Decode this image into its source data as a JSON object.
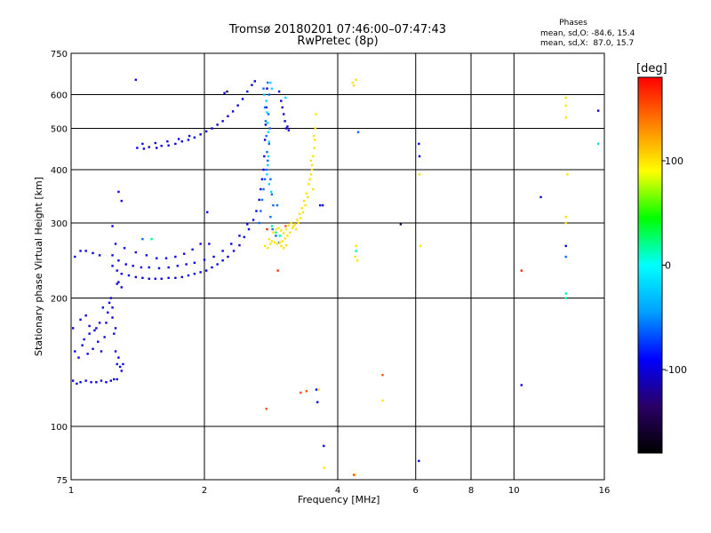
{
  "chart_data": {
    "type": "scatter",
    "title": "Tromsø 20180201 07:46:00–07:47:43",
    "subtitle": "RwPretec (8p)",
    "xlabel": "Frequency [MHz]",
    "ylabel": "Stationary phase Virtual Height [km]",
    "x_scale": "log",
    "y_scale": "log",
    "xlim": [
      1,
      16
    ],
    "ylim": [
      75,
      750
    ],
    "x_ticks": [
      "1",
      "2",
      "4",
      "6",
      "8",
      "10",
      "16"
    ],
    "y_ticks": [
      "75",
      "100",
      "200",
      "300",
      "400",
      "500",
      "600",
      "750"
    ],
    "grid": true,
    "phase_stats": {
      "heading": "Phases",
      "o_mode": "mean, sd,O: -84.6, 15.4",
      "x_mode": "mean, sd,X:  87.0, 15.7"
    },
    "colorbar": {
      "unit": "[deg]",
      "range": [
        -180,
        180
      ],
      "ticks": [
        "100",
        "0",
        "-100"
      ],
      "colormap": [
        "#000000",
        "#2a0066",
        "#0000ff",
        "#00a0ff",
        "#00ffff",
        "#00ff00",
        "#ffff00",
        "#ff8000",
        "#ff0000"
      ]
    },
    "series": [
      {
        "phase_deg": -100,
        "points": [
          [
            1.01,
            128
          ],
          [
            1.03,
            126
          ],
          [
            1.05,
            127
          ],
          [
            1.08,
            128
          ],
          [
            1.11,
            127
          ],
          [
            1.14,
            127
          ],
          [
            1.17,
            128
          ],
          [
            1.2,
            127
          ],
          [
            1.23,
            128
          ],
          [
            1.25,
            129
          ],
          [
            1.27,
            129
          ],
          [
            1.02,
            150
          ],
          [
            1.04,
            145
          ],
          [
            1.06,
            155
          ],
          [
            1.07,
            160
          ],
          [
            1.09,
            148
          ],
          [
            1.1,
            165
          ],
          [
            1.12,
            152
          ],
          [
            1.14,
            170
          ],
          [
            1.15,
            158
          ],
          [
            1.17,
            150
          ],
          [
            1.19,
            162
          ],
          [
            1.2,
            175
          ],
          [
            1.21,
            185
          ],
          [
            1.22,
            195
          ],
          [
            1.23,
            200
          ],
          [
            1.24,
            190
          ],
          [
            1.25,
            165
          ],
          [
            1.26,
            150
          ],
          [
            1.27,
            140
          ],
          [
            1.28,
            145
          ],
          [
            1.29,
            138
          ],
          [
            1.3,
            135
          ],
          [
            1.31,
            140
          ],
          [
            1.01,
            170
          ],
          [
            1.05,
            178
          ],
          [
            1.08,
            182
          ],
          [
            1.1,
            172
          ],
          [
            1.13,
            168
          ],
          [
            1.16,
            175
          ],
          [
            1.18,
            190
          ],
          [
            1.24,
            180
          ],
          [
            1.26,
            170
          ],
          [
            1.28,
            218
          ],
          [
            1.27,
            216
          ],
          [
            1.3,
            212
          ],
          [
            1.02,
            250
          ],
          [
            1.05,
            258
          ],
          [
            1.08,
            258
          ],
          [
            1.12,
            255
          ],
          [
            1.16,
            252
          ],
          [
            1.24,
            238
          ],
          [
            1.27,
            232
          ],
          [
            1.3,
            228
          ],
          [
            1.35,
            226
          ],
          [
            1.4,
            224
          ],
          [
            1.45,
            223
          ],
          [
            1.5,
            222
          ],
          [
            1.55,
            222
          ],
          [
            1.6,
            222
          ],
          [
            1.66,
            223
          ],
          [
            1.72,
            223
          ],
          [
            1.78,
            224
          ],
          [
            1.84,
            226
          ],
          [
            1.9,
            228
          ],
          [
            1.96,
            230
          ],
          [
            2.02,
            232
          ],
          [
            2.08,
            236
          ],
          [
            2.14,
            240
          ],
          [
            2.2,
            245
          ],
          [
            2.26,
            250
          ],
          [
            2.33,
            258
          ],
          [
            2.4,
            266
          ],
          [
            2.46,
            278
          ],
          [
            2.52,
            290
          ],
          [
            2.58,
            305
          ],
          [
            2.62,
            320
          ],
          [
            2.66,
            340
          ],
          [
            2.68,
            360
          ],
          [
            2.7,
            380
          ],
          [
            2.72,
            400
          ],
          [
            2.73,
            430
          ],
          [
            2.74,
            470
          ],
          [
            2.75,
            510
          ],
          [
            2.76,
            560
          ],
          [
            2.77,
            620
          ],
          [
            1.24,
            252
          ],
          [
            1.28,
            245
          ],
          [
            1.33,
            240
          ],
          [
            1.38,
            238
          ],
          [
            1.44,
            236
          ],
          [
            1.5,
            236
          ],
          [
            1.58,
            235
          ],
          [
            1.66,
            236
          ],
          [
            1.74,
            238
          ],
          [
            1.82,
            240
          ],
          [
            1.9,
            242
          ],
          [
            2.0,
            246
          ],
          [
            2.1,
            250
          ],
          [
            2.2,
            258
          ],
          [
            2.3,
            268
          ],
          [
            2.4,
            280
          ],
          [
            2.5,
            298
          ],
          [
            1.26,
            268
          ],
          [
            1.32,
            262
          ],
          [
            1.4,
            256
          ],
          [
            1.48,
            252
          ],
          [
            1.56,
            248
          ],
          [
            1.64,
            248
          ],
          [
            1.72,
            250
          ],
          [
            1.8,
            254
          ],
          [
            1.88,
            260
          ],
          [
            1.96,
            268
          ],
          [
            2.05,
            268
          ],
          [
            1.41,
            450
          ],
          [
            1.46,
            448
          ],
          [
            1.5,
            452
          ],
          [
            1.56,
            450
          ],
          [
            1.6,
            455
          ],
          [
            1.66,
            456
          ],
          [
            1.72,
            460
          ],
          [
            1.78,
            466
          ],
          [
            1.84,
            470
          ],
          [
            1.9,
            476
          ],
          [
            1.96,
            484
          ],
          [
            2.02,
            492
          ],
          [
            2.08,
            500
          ],
          [
            2.14,
            510
          ],
          [
            2.2,
            520
          ],
          [
            2.26,
            534
          ],
          [
            2.32,
            548
          ],
          [
            2.38,
            566
          ],
          [
            2.44,
            586
          ],
          [
            2.5,
            610
          ],
          [
            2.56,
            632
          ],
          [
            2.6,
            645
          ],
          [
            1.45,
            460
          ],
          [
            1.55,
            462
          ],
          [
            1.65,
            466
          ],
          [
            1.75,
            472
          ],
          [
            1.85,
            480
          ],
          [
            2.95,
            610
          ],
          [
            2.98,
            580
          ],
          [
            3.0,
            560
          ],
          [
            3.02,
            540
          ],
          [
            3.04,
            520
          ],
          [
            3.06,
            500
          ],
          [
            3.08,
            505
          ],
          [
            3.1,
            495
          ],
          [
            1.4,
            650
          ],
          [
            2.22,
            605
          ],
          [
            1.28,
            355
          ],
          [
            1.3,
            338
          ],
          [
            1.24,
            295
          ],
          [
            2.03,
            318
          ],
          [
            3.65,
            330
          ],
          [
            3.7,
            330
          ],
          [
            3.58,
            122
          ],
          [
            3.72,
            90
          ],
          [
            3.6,
            114
          ],
          [
            10.4,
            125
          ],
          [
            6.1,
            460
          ],
          [
            6.12,
            430
          ],
          [
            15.5,
            550
          ],
          [
            11.5,
            345
          ],
          [
            13.1,
            265
          ],
          [
            6.1,
            83
          ]
        ]
      },
      {
        "phase_deg": -60,
        "points": [
          [
            2.72,
            620
          ],
          [
            2.74,
            560
          ],
          [
            2.75,
            520
          ],
          [
            2.76,
            480
          ],
          [
            2.77,
            440
          ],
          [
            2.78,
            420
          ],
          [
            2.76,
            400
          ],
          [
            2.74,
            380
          ],
          [
            2.72,
            360
          ],
          [
            2.7,
            340
          ],
          [
            2.68,
            320
          ],
          [
            2.66,
            300
          ],
          [
            2.78,
            640
          ],
          [
            2.8,
            600
          ],
          [
            2.79,
            540
          ],
          [
            2.81,
            500
          ],
          [
            2.8,
            460
          ],
          [
            2.82,
            380
          ],
          [
            2.84,
            350
          ],
          [
            2.86,
            330
          ],
          [
            2.82,
            310
          ],
          [
            2.9,
            280
          ],
          [
            2.95,
            270
          ],
          [
            2.85,
            290
          ],
          [
            2.92,
            330
          ],
          [
            1.45,
            275
          ],
          [
            4.45,
            490
          ],
          [
            13.1,
            250
          ]
        ]
      },
      {
        "phase_deg": -20,
        "points": [
          [
            2.73,
            600
          ],
          [
            2.76,
            580
          ],
          [
            2.77,
            545
          ],
          [
            2.78,
            515
          ],
          [
            2.79,
            490
          ],
          [
            2.8,
            465
          ],
          [
            2.79,
            430
          ],
          [
            2.78,
            410
          ],
          [
            2.77,
            390
          ],
          [
            2.8,
            370
          ],
          [
            2.83,
            355
          ],
          [
            2.82,
            640
          ],
          [
            2.84,
            620
          ],
          [
            3.05,
            590
          ],
          [
            15.5,
            460
          ],
          [
            3.3,
            120
          ]
        ]
      },
      {
        "phase_deg": 20,
        "points": [
          [
            2.84,
            295
          ],
          [
            2.9,
            285
          ],
          [
            2.96,
            280
          ],
          [
            1.52,
            275
          ],
          [
            4.4,
            258
          ],
          [
            13.1,
            200
          ],
          [
            13.1,
            205
          ]
        ]
      },
      {
        "phase_deg": 100,
        "points": [
          [
            2.8,
            275
          ],
          [
            2.84,
            272
          ],
          [
            2.88,
            270
          ],
          [
            2.92,
            268
          ],
          [
            2.96,
            270
          ],
          [
            3.0,
            272
          ],
          [
            3.04,
            276
          ],
          [
            3.08,
            280
          ],
          [
            3.12,
            285
          ],
          [
            3.16,
            292
          ],
          [
            3.2,
            298
          ],
          [
            3.24,
            305
          ],
          [
            3.28,
            315
          ],
          [
            3.32,
            325
          ],
          [
            3.36,
            338
          ],
          [
            3.4,
            352
          ],
          [
            3.44,
            370
          ],
          [
            3.48,
            390
          ],
          [
            3.5,
            410
          ],
          [
            3.52,
            430
          ],
          [
            3.54,
            450
          ],
          [
            3.55,
            470
          ],
          [
            3.56,
            500
          ],
          [
            3.57,
            540
          ],
          [
            2.86,
            285
          ],
          [
            2.9,
            290
          ],
          [
            2.94,
            292
          ],
          [
            2.98,
            288
          ],
          [
            3.02,
            284
          ],
          [
            3.06,
            290
          ],
          [
            3.1,
            296
          ],
          [
            3.14,
            300
          ],
          [
            3.18,
            295
          ],
          [
            3.22,
            290
          ],
          [
            3.26,
            300
          ],
          [
            3.3,
            308
          ],
          [
            3.34,
            318
          ],
          [
            3.38,
            330
          ],
          [
            3.42,
            345
          ],
          [
            3.46,
            380
          ],
          [
            3.5,
            400
          ],
          [
            3.52,
            360
          ],
          [
            3.48,
            420
          ],
          [
            3.53,
            480
          ],
          [
            2.74,
            265
          ],
          [
            2.78,
            262
          ],
          [
            2.82,
            268
          ],
          [
            2.98,
            265
          ],
          [
            3.02,
            262
          ],
          [
            3.06,
            266
          ],
          [
            4.32,
            640
          ],
          [
            4.35,
            630
          ],
          [
            4.4,
            650
          ],
          [
            4.4,
            265
          ],
          [
            4.38,
            250
          ],
          [
            4.43,
            245
          ],
          [
            13.1,
            590
          ],
          [
            13.1,
            565
          ],
          [
            13.1,
            530
          ],
          [
            13.2,
            390
          ],
          [
            13.1,
            310
          ],
          [
            13.1,
            300
          ],
          [
            6.12,
            390
          ],
          [
            6.15,
            265
          ],
          [
            5.05,
            115
          ],
          [
            3.62,
            122
          ],
          [
            3.73,
            80
          ],
          [
            4.38,
            77
          ]
        ]
      },
      {
        "phase_deg": 150,
        "points": [
          [
            3.3,
            120
          ],
          [
            3.4,
            121
          ],
          [
            5.05,
            132
          ],
          [
            2.76,
            110
          ],
          [
            3.05,
            295
          ],
          [
            4.35,
            77
          ]
        ]
      },
      {
        "phase_deg": 165,
        "points": [
          [
            2.77,
            290
          ],
          [
            2.93,
            232
          ],
          [
            10.4,
            232
          ]
        ]
      },
      {
        "phase_deg": -150,
        "points": [
          [
            5.55,
            298
          ],
          [
            2.25,
            610
          ]
        ]
      }
    ]
  }
}
